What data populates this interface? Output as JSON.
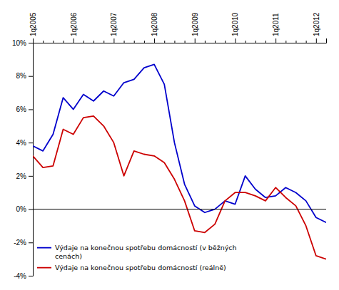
{
  "chart_data": {
    "type": "line",
    "categories": [
      "1q2005",
      null,
      null,
      null,
      "1q2006",
      null,
      null,
      null,
      "1q2007",
      null,
      null,
      null,
      "1q2008",
      null,
      null,
      null,
      "1q2009",
      null,
      null,
      null,
      "1q2010",
      null,
      null,
      null,
      "1q2011",
      null,
      null,
      null,
      "1q2012",
      null
    ],
    "series": [
      {
        "name": "Výdaje na konečnou spotřebu domácností (v běžných\ncenách)",
        "color": "#0000cc",
        "values": [
          3.8,
          3.5,
          4.5,
          6.7,
          6.0,
          6.9,
          6.5,
          7.1,
          6.8,
          7.6,
          7.8,
          8.5,
          8.7,
          7.5,
          4.0,
          1.5,
          0.2,
          -0.2,
          0.0,
          0.5,
          0.3,
          2.0,
          1.2,
          0.7,
          0.8,
          1.3,
          1.0,
          0.5,
          -0.5,
          -0.8
        ]
      },
      {
        "name": "Výdaje na konečnou spotřebu domácností (reálně)",
        "color": "#cc0000",
        "values": [
          3.2,
          2.5,
          2.6,
          4.8,
          4.5,
          5.5,
          5.6,
          5.0,
          4.0,
          2.0,
          3.5,
          3.3,
          3.2,
          2.8,
          1.8,
          0.5,
          -1.3,
          -1.4,
          -0.9,
          0.5,
          1.0,
          1.0,
          0.8,
          0.5,
          1.3,
          0.7,
          0.2,
          -1.0,
          -2.8,
          -3.0
        ]
      }
    ],
    "ylim": [
      -4,
      10
    ],
    "yticks": [
      {
        "value": -4,
        "label": "-4%"
      },
      {
        "value": -2,
        "label": "-2%"
      },
      {
        "value": 0,
        "label": "0%"
      },
      {
        "value": 2,
        "label": "2%"
      },
      {
        "value": 4,
        "label": "4%"
      },
      {
        "value": 6,
        "label": "6%"
      },
      {
        "value": 8,
        "label": "8%"
      },
      {
        "value": 10,
        "label": "10%"
      }
    ],
    "grid": false,
    "legend": "lower left"
  }
}
